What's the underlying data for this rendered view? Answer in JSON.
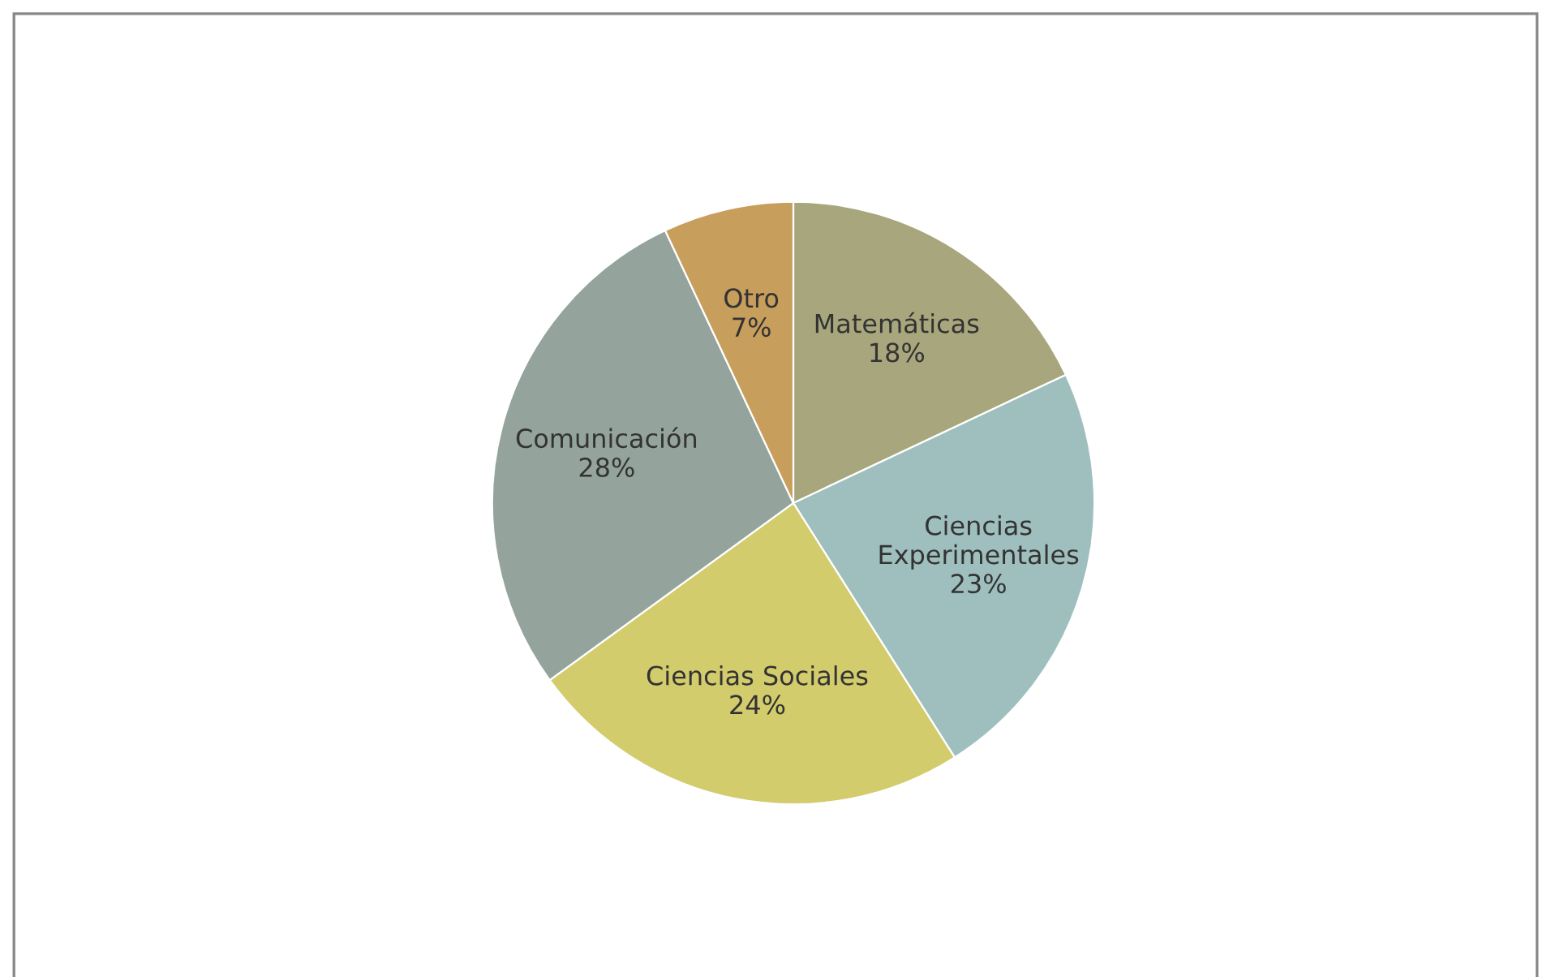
{
  "chart_data": {
    "type": "pie",
    "categories": [
      "Matemáticas",
      "Ciencias Experimentales",
      "Ciencias Sociales",
      "Comunicación",
      "Otro"
    ],
    "values": [
      18,
      23,
      24,
      28,
      7
    ],
    "colors": [
      "#a8a67c",
      "#9fbfbf",
      "#d3cc6c",
      "#94a39c",
      "#c89e5c"
    ],
    "value_labels": [
      "18%",
      "23%",
      "24%",
      "28%",
      "7%"
    ],
    "legend": false
  }
}
